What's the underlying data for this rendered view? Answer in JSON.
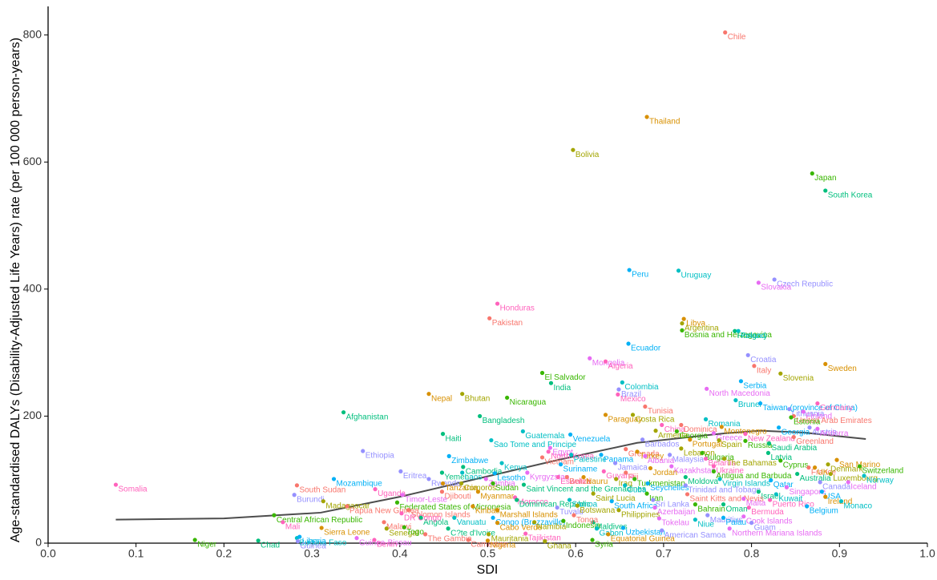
{
  "chart_data": {
    "type": "scatter",
    "x_label": "SDI",
    "y_label": "Age-standardised DALYs (Disability-Adjusted Life Years) rate (per 100 000 person-years)",
    "xlim": [
      0,
      1
    ],
    "ylim": [
      0,
      845
    ],
    "xticks": [
      {
        "value": 0,
        "label": "0.0"
      },
      0.1,
      0.2,
      0.3,
      0.4,
      0.5,
      0.6,
      0.7,
      0.8,
      0.9,
      {
        "value": 1,
        "label": "1.0"
      }
    ],
    "yticks": [
      0,
      200,
      400,
      600,
      800
    ],
    "palette": [
      "#f8766d",
      "#d89000",
      "#a3a500",
      "#39b600",
      "#00bf7d",
      "#00bfc4",
      "#00b0f6",
      "#9590ff",
      "#e76bf3",
      "#ff62bc"
    ],
    "labels": [
      "Chile",
      "Thailand",
      "Bolivia",
      "Japan",
      "South Korea",
      "Uruguay",
      "Peru",
      "Czech Republic",
      "Slovakia",
      "Honduras",
      "Pakistan",
      "Libya",
      "Argentina",
      "Bosnia and Herzegovina",
      "Hungary",
      "Poland",
      "Ecuador",
      "Croatia",
      "Mongolia",
      "Algeria",
      "Italy",
      "Sweden",
      "Slovenia",
      "El Salvador",
      "India",
      "Colombia",
      "Serbia",
      "Brazil",
      "North Macedonia",
      "Mexico",
      "Tunisia",
      "Nepal",
      "Bhutan",
      "Nicaragua",
      "Afghanistan",
      "Brunei",
      "Taiwan (province of China)",
      "Lithuania",
      "Finland",
      "Germany",
      "United Arab Emirates",
      "Paraguay",
      "Costa Rica",
      "Estonia",
      "Bangladesh",
      "Romania",
      "Georgia",
      "Austria",
      "Andorra",
      "China",
      "Dominica",
      "Montenegro",
      "Armenia",
      "Georgia",
      "Haiti",
      "Guatemala",
      "Venezuela",
      "Barbados",
      "Greece",
      "New Zealand",
      "Greenland",
      "Portugal",
      "Spain",
      "Russia",
      "Saudi Arabia",
      "Sao Tome and Principe",
      "Zimbabwe",
      "Ethiopia",
      "Egypt",
      "North Korea",
      "Grenada",
      "Turkey",
      "Lebanon",
      "Bulgaria",
      "Latvia",
      "Palestine",
      "Panama",
      "Malaysia",
      "Albania",
      "Belarus",
      "Vietnam",
      "San Marino",
      "The Bahamas",
      "Cyprus",
      "Cambodia",
      "Kenya",
      "Suriname",
      "Jamaica",
      "Kazakhstan",
      "Ukraine",
      "France",
      "UK",
      "Denmark",
      "Switzerland",
      "Yemen",
      "Laos",
      "Lesotho",
      "Eritrea",
      "Kyrgyzstan",
      "Guyana",
      "Fiji",
      "Jordan",
      "Luxembourg",
      "Antigua and Barbuda",
      "Australia",
      "Norway",
      "Mozambique",
      "Rwanda",
      "Zambia",
      "Eswatini",
      "Belize",
      "Nauru",
      "Iraq",
      "Turkmenistan",
      "Moldova",
      "Virgin Islands",
      "Qatar",
      "Canada",
      "Iceland",
      "Somalia",
      "South Sudan",
      "Tanzania",
      "Comoros",
      "Sudan",
      "Saint Vincent and the Grenadines",
      "Cuba",
      "Seychelles",
      "Trinidad and Tobago",
      "Singapore",
      "Uganda",
      "Djibouti",
      "Myanmar",
      "Saint Lucia",
      "Iran",
      "Israel",
      "Kuwait",
      "USA",
      "Burundi",
      "Timor-Leste",
      "Morocco",
      "Saint Kitts and Nevis",
      "Ireland",
      "Madagascar",
      "Federated States of Micronesia",
      "Dominican Republic",
      "Samoa",
      "South Africa",
      "Sri Lanka",
      "Malta",
      "Puerto Rico",
      "Papua New Guinea",
      "Kiribati",
      "Botswana",
      "Bahrain",
      "Oman",
      "Monaco",
      "Belgium",
      "Tuvalu",
      "Azerbaijan",
      "Bermuda",
      "Solomon Islands",
      "Marshall Islands",
      "Philippines",
      "Central African Republic",
      "Angola",
      "Vanuatu",
      "Congo (Brazzaville)",
      "Mauritius",
      "Cook Islands",
      "Mali",
      "Malawi",
      "Cabo Verde",
      "Namibia",
      "Indonesia",
      "Maldives",
      "Niue",
      "Palau",
      "Guam",
      "Tokelau",
      "DR Congo",
      "Tonga",
      "Sierra Leone",
      "Senegal",
      "Togo",
      "C?te d'Ivoire",
      "Gabon",
      "Uzbekistan",
      "American Samoa",
      "Northern Mariana Islands",
      "Tajikistan",
      "The Gambia",
      "Equatorial Guinea",
      "Mauritania",
      "Niger",
      "Chad",
      "Burkina Faso",
      "Liberia",
      "Guinea",
      "Guinea-Bissau",
      "Benin",
      "Cameroon",
      "Nigeria",
      "Ghana",
      "Syria"
    ],
    "x": [
      0.77,
      0.681,
      0.597,
      0.869,
      0.884,
      0.717,
      0.661,
      0.826,
      0.808,
      0.511,
      0.502,
      0.723,
      0.721,
      0.721,
      0.781,
      0.785,
      0.66,
      0.796,
      0.616,
      0.634,
      0.803,
      0.884,
      0.833,
      0.562,
      0.572,
      0.653,
      0.788,
      0.649,
      0.749,
      0.648,
      0.679,
      0.433,
      0.471,
      0.522,
      0.336,
      0.782,
      0.81,
      0.843,
      0.859,
      0.875,
      0.848,
      0.634,
      0.665,
      0.845,
      0.491,
      0.748,
      0.831,
      0.866,
      0.875,
      0.698,
      0.72,
      0.766,
      0.691,
      0.715,
      0.449,
      0.54,
      0.594,
      0.676,
      0.757,
      0.793,
      0.848,
      0.73,
      0.763,
      0.793,
      0.82,
      0.504,
      0.456,
      0.358,
      0.571,
      0.569,
      0.657,
      0.67,
      0.72,
      0.744,
      0.819,
      0.595,
      0.629,
      0.707,
      0.679,
      0.748,
      0.562,
      0.897,
      0.769,
      0.833,
      0.472,
      0.516,
      0.583,
      0.645,
      0.709,
      0.757,
      0.865,
      0.872,
      0.887,
      0.923,
      0.448,
      0.471,
      0.508,
      0.401,
      0.545,
      0.632,
      0.657,
      0.685,
      0.89,
      0.757,
      0.852,
      0.928,
      0.325,
      0.433,
      0.498,
      0.58,
      0.59,
      0.609,
      0.646,
      0.667,
      0.725,
      0.764,
      0.822,
      0.878,
      0.91,
      0.077,
      0.283,
      0.449,
      0.47,
      0.506,
      0.541,
      0.656,
      0.682,
      0.725,
      0.84,
      0.372,
      0.448,
      0.489,
      0.62,
      0.681,
      0.808,
      0.828,
      0.88,
      0.28,
      0.403,
      0.531,
      0.727,
      0.884,
      0.313,
      0.397,
      0.533,
      0.593,
      0.641,
      0.688,
      0.791,
      0.821,
      0.34,
      0.483,
      0.602,
      0.736,
      0.768,
      0.902,
      0.863,
      0.579,
      0.69,
      0.797,
      0.41,
      0.511,
      0.649,
      0.257,
      0.424,
      0.462,
      0.506,
      0.75,
      0.791,
      0.267,
      0.382,
      0.511,
      0.553,
      0.586,
      0.62,
      0.736,
      0.768,
      0.8,
      0.695,
      0.402,
      0.598,
      0.311,
      0.385,
      0.405,
      0.455,
      0.624,
      0.654,
      0.698,
      0.775,
      0.543,
      0.429,
      0.637,
      0.501,
      0.167,
      0.239,
      0.283,
      0.286,
      0.284,
      0.351,
      0.371,
      0.478,
      0.5,
      0.565,
      0.619
    ],
    "values": [
      804,
      671,
      619,
      582,
      555,
      429,
      430,
      415,
      410,
      377,
      354,
      353,
      346,
      335,
      334,
      334,
      314,
      296,
      291,
      286,
      279,
      282,
      267,
      268,
      252,
      253,
      255,
      242,
      243,
      234,
      215,
      235,
      235,
      229,
      206,
      225,
      220,
      211,
      207,
      220,
      200,
      202,
      202,
      198,
      200,
      195,
      182,
      182,
      180,
      186,
      186,
      183,
      177,
      176,
      172,
      176,
      171,
      163,
      173,
      172,
      167,
      163,
      162,
      161,
      157,
      162,
      137,
      145,
      150,
      144,
      148,
      144,
      149,
      142,
      142,
      139,
      139,
      139,
      137,
      133,
      135,
      131,
      133,
      130,
      120,
      126,
      124,
      126,
      121,
      121,
      119,
      119,
      124,
      121,
      111,
      111,
      110,
      113,
      111,
      113,
      111,
      118,
      109,
      113,
      109,
      106,
      101,
      101,
      101,
      104,
      104,
      104,
      101,
      101,
      104,
      101,
      99,
      96,
      96,
      92,
      91,
      94,
      94,
      94,
      92,
      91,
      94,
      91,
      88,
      85,
      81,
      81,
      78,
      78,
      81,
      77,
      81,
      76,
      76,
      72,
      77,
      73,
      66,
      64,
      68,
      68,
      66,
      68,
      70,
      68,
      58,
      58,
      59,
      61,
      61,
      66,
      58,
      56,
      56,
      56,
      52,
      52,
      52,
      44,
      40,
      40,
      40,
      44,
      42,
      33,
      33,
      32,
      33,
      35,
      33,
      37,
      40,
      32,
      39,
      47,
      44,
      24,
      23,
      25,
      23,
      23,
      24,
      20,
      23,
      15,
      14,
      14,
      14,
      5,
      4,
      8,
      10,
      3,
      8,
      5,
      5,
      4,
      3,
      5
    ],
    "trend": {
      "color": "#4d4d4d",
      "x": [
        0.077,
        0.2,
        0.31,
        0.4,
        0.49,
        0.58,
        0.67,
        0.77,
        0.81,
        0.86,
        0.93
      ],
      "values": [
        37,
        39,
        48,
        73,
        102,
        131,
        158,
        173,
        177,
        174,
        164
      ]
    }
  }
}
